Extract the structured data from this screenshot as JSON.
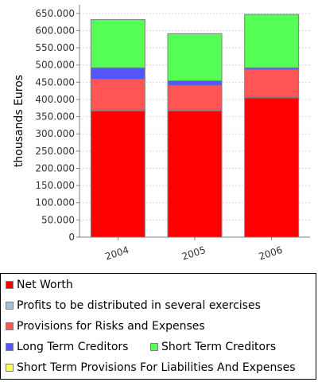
{
  "chart_data": {
    "type": "bar",
    "stacked": true,
    "categories": [
      "2004",
      "2005",
      "2006"
    ],
    "ylabel": "thousands Euros",
    "xlabel": "",
    "ylim": [
      0,
      675000
    ],
    "yticks": [
      0,
      50000,
      100000,
      150000,
      200000,
      250000,
      300000,
      350000,
      400000,
      450000,
      500000,
      550000,
      600000,
      650000
    ],
    "ytick_labels": [
      "0",
      "50.000",
      "100.000",
      "150.000",
      "200.000",
      "250.000",
      "300.000",
      "350.000",
      "400.000",
      "450.000",
      "500.000",
      "550.000",
      "600.000",
      "650.000"
    ],
    "grid": true,
    "legend_position": "bottom",
    "series": [
      {
        "name": "Net Worth",
        "color": "#ff0000",
        "values": [
          367000,
          367000,
          405000
        ]
      },
      {
        "name": "Profits to be distributed in several exercises",
        "color": "#a6c0d8",
        "values": [
          2000,
          2000,
          2000
        ]
      },
      {
        "name": "Provisions for Risks and Expenses",
        "color": "#ff5555",
        "values": [
          90000,
          72000,
          80000
        ]
      },
      {
        "name": "Long Term Creditors",
        "color": "#5555ff",
        "values": [
          33000,
          13000,
          5000
        ]
      },
      {
        "name": "Short Term Creditors",
        "color": "#55ff55",
        "values": [
          140000,
          137000,
          155000
        ]
      },
      {
        "name": "Short Term Provisions For Liabilities And Expenses",
        "color": "#ffff55",
        "values": [
          0,
          0,
          0
        ]
      }
    ]
  }
}
